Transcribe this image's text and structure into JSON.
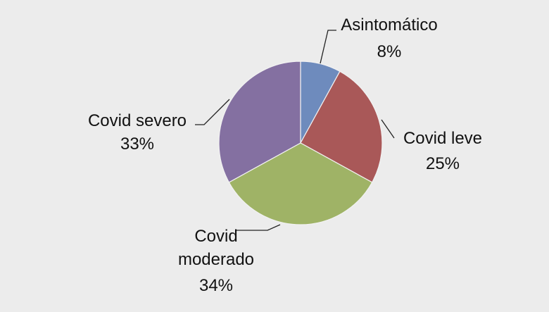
{
  "chart_data": {
    "type": "pie",
    "title": "",
    "categories": [
      "Asintomático",
      "Covid leve",
      "Covid moderado",
      "Covid severo"
    ],
    "values": [
      8,
      25,
      34,
      33
    ],
    "percent_labels": [
      "8%",
      "25%",
      "34%",
      "33%"
    ],
    "colors": [
      "#6e8bbd",
      "#a95858",
      "#9fb366",
      "#8470a1"
    ],
    "start_angle_deg": 0,
    "direction": "clockwise",
    "legend": "none",
    "data_labels": "outside with leader lines"
  },
  "labels": {
    "asintomatico": {
      "name": "Asintomático",
      "pct": "8%"
    },
    "leve": {
      "name": "Covid leve",
      "pct": "25%"
    },
    "moderado": {
      "line1": "Covid",
      "line2": "moderado",
      "pct": "34%"
    },
    "severo": {
      "name": "Covid severo",
      "pct": "33%"
    }
  }
}
